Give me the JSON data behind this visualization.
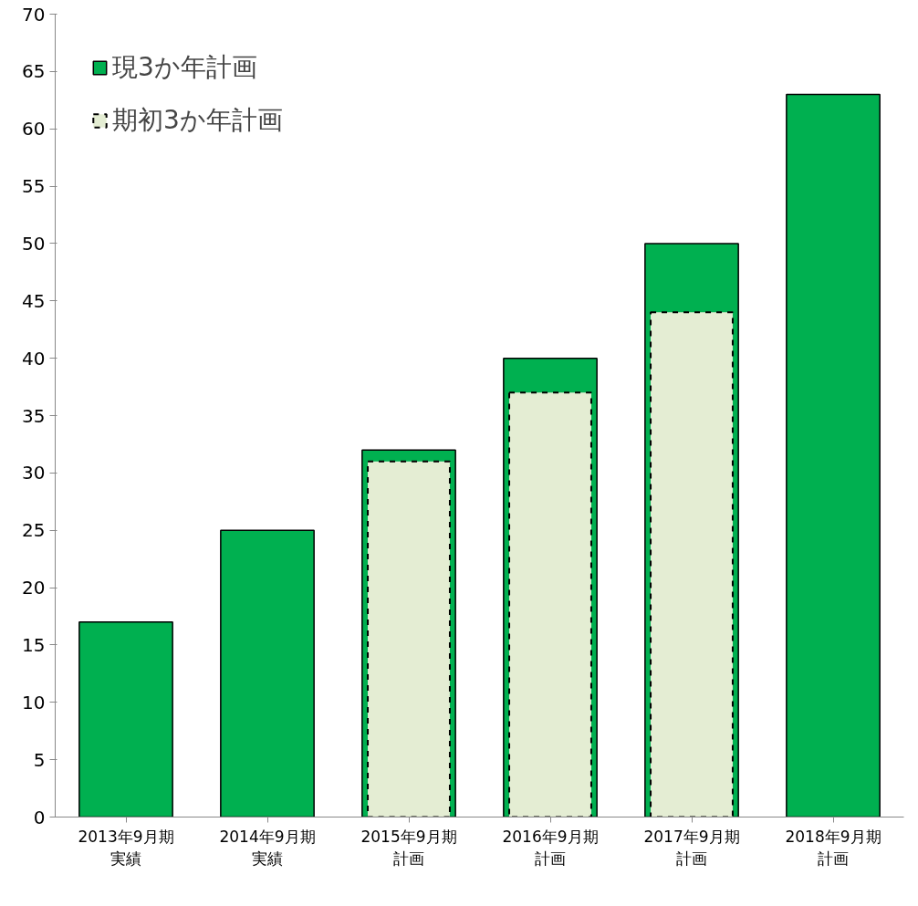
{
  "chart_data": {
    "type": "bar",
    "categories": [
      "2013年9月期実績",
      "2014年9月期実績",
      "2015年9月期計画",
      "2016年9月期計画",
      "2017年9月期計画",
      "2018年9月期計画"
    ],
    "series": [
      {
        "name": "現3か年計画",
        "color": "#00b050",
        "values": [
          17,
          25,
          32,
          40,
          50,
          63
        ]
      },
      {
        "name": "期初3か年計画",
        "color": "#e4edd3",
        "line_style": "dashed",
        "values": [
          null,
          null,
          31,
          37,
          44,
          null
        ]
      }
    ],
    "ylim": [
      0,
      70
    ],
    "yticks": [
      0,
      5,
      10,
      15,
      20,
      25,
      30,
      35,
      40,
      45,
      50,
      55,
      60,
      65,
      70
    ],
    "grid": false,
    "legend": "top left"
  }
}
